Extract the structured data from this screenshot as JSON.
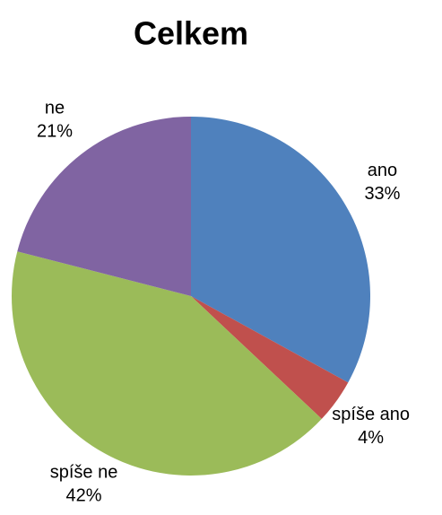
{
  "chart_data": {
    "type": "pie",
    "title": "Celkem",
    "categories": [
      "ano",
      "spíše ano",
      "spíše ne",
      "ne"
    ],
    "values": [
      33,
      4,
      42,
      21
    ],
    "value_labels": [
      "33%",
      "4%",
      "42%",
      "21%"
    ],
    "colors": [
      "#4f81bd",
      "#c0504d",
      "#9bbb59",
      "#8064a2"
    ]
  }
}
